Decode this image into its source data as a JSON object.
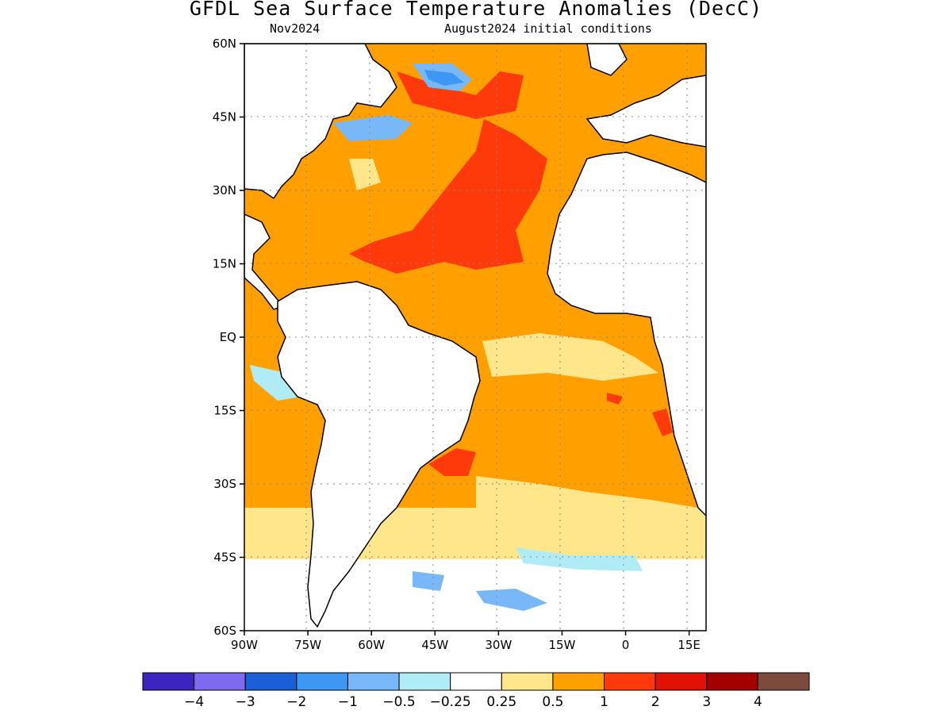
{
  "title": "GFDL Sea Surface Temperature Anomalies (DecC)",
  "subtitle_left": "Nov2024",
  "subtitle_right": "August2024 initial conditions",
  "map": {
    "lon_range": [
      -90,
      19
    ],
    "lat_range": [
      -60,
      60
    ],
    "lat_ticks": [
      "60N",
      "45N",
      "30N",
      "15N",
      "EQ",
      "15S",
      "30S",
      "45S",
      "60S"
    ],
    "lon_ticks": [
      "90W",
      "75W",
      "60W",
      "45W",
      "30W",
      "15W",
      "0",
      "15E"
    ],
    "grid": "dotted",
    "land_color": "#ffffff",
    "coastline_color": "#000000"
  },
  "colorbar": {
    "colors": [
      "#3b24c0",
      "#7e6af0",
      "#1b5fd6",
      "#3d98f5",
      "#78b8f8",
      "#b0ecf6",
      "#ffffff",
      "#ffe68a",
      "#ff9f00",
      "#ff3a0a",
      "#df1205",
      "#a40000",
      "#7d4b3d"
    ],
    "labels": [
      "−4",
      "−3",
      "−2",
      "−1",
      "−0.5",
      "−0.25",
      "0.25",
      "0.5",
      "1",
      "2",
      "3",
      "4"
    ]
  }
}
